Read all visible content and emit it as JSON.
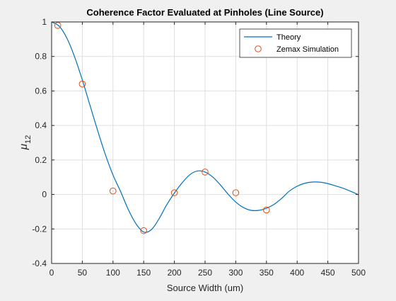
{
  "chart_data": {
    "type": "line",
    "title": "Coherence Factor Evaluated at Pinholes (Line Source)",
    "xlabel": "Source Width (um)",
    "ylabel": "μ",
    "ylabel_subscript": "12",
    "xlim": [
      0,
      500
    ],
    "ylim": [
      -0.4,
      1
    ],
    "xticks": [
      0,
      50,
      100,
      150,
      200,
      250,
      300,
      350,
      400,
      450,
      500
    ],
    "yticks": [
      -0.4,
      -0.2,
      0,
      0.2,
      0.4,
      0.6,
      0.8,
      1
    ],
    "xtick_labels": [
      "0",
      "50",
      "100",
      "150",
      "200",
      "250",
      "300",
      "350",
      "400",
      "450",
      "500"
    ],
    "ytick_labels": [
      "-0.4",
      "-0.2",
      "0",
      "0.2",
      "0.4",
      "0.6",
      "0.8",
      "1"
    ],
    "grid": true,
    "legend_position": "top-right",
    "series": [
      {
        "name": "Theory",
        "kind": "line",
        "color": "#0072BD",
        "x": [
          0,
          12.5,
          25,
          37.5,
          50,
          62.5,
          75,
          87.5,
          100,
          112.5,
          125,
          137.5,
          150,
          162.5,
          175,
          187.5,
          200,
          212.5,
          225,
          237.5,
          250,
          262.5,
          275,
          287.5,
          300,
          312.5,
          325,
          337.5,
          350,
          362.5,
          375,
          387.5,
          400,
          412.5,
          425,
          437.5,
          450,
          462.5,
          475,
          487.5,
          500
        ],
        "y": [
          1.0,
          0.975,
          0.905,
          0.797,
          0.664,
          0.517,
          0.37,
          0.232,
          0.113,
          0.016,
          -0.088,
          -0.17,
          -0.218,
          -0.204,
          -0.141,
          -0.06,
          0.008,
          0.067,
          0.114,
          0.136,
          0.13,
          0.101,
          0.055,
          0.002,
          -0.044,
          -0.076,
          -0.092,
          -0.092,
          -0.08,
          -0.057,
          -0.022,
          0.02,
          0.048,
          0.065,
          0.072,
          0.071,
          0.063,
          0.05,
          0.036,
          0.018,
          -0.002
        ]
      },
      {
        "name": "Zemax Simulation",
        "kind": "markers",
        "color": "#D95319",
        "x": [
          10,
          50,
          100,
          150,
          200,
          250,
          300,
          350
        ],
        "y": [
          0.98,
          0.64,
          0.02,
          -0.21,
          0.01,
          0.13,
          0.01,
          -0.09
        ]
      }
    ]
  }
}
